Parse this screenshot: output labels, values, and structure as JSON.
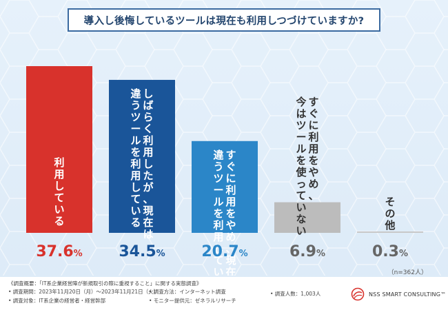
{
  "title": "導入し後悔しているツールは現在も利用しつづけていますか?",
  "sample_size": "（n=362人）",
  "chart_data": {
    "type": "bar",
    "title": "導入し後悔しているツールは現在も利用しつづけていますか?",
    "categories": [
      "利用している",
      "しばらく利用したが、現在は違うツールを利用している",
      "すぐに利用をやめ、現在は違うツールを利用している",
      "すぐに利用をやめ、今はツールを使っていない",
      "その他"
    ],
    "label_lines": [
      [
        "利用している"
      ],
      [
        "しばらく利用したが、現在は",
        "違うツールを利用している"
      ],
      [
        "すぐに利用をやめ、現在は",
        "違うツールを利用している"
      ],
      [
        "すぐに利用をやめ、",
        "今はツールを使っていない"
      ],
      [
        "その他"
      ]
    ],
    "values": [
      37.6,
      34.5,
      20.7,
      6.9,
      0.3
    ],
    "value_labels": [
      "37.6%",
      "34.5%",
      "20.7%",
      "6.9%",
      "0.3%"
    ],
    "unit": "%",
    "colors": [
      "#d8322c",
      "#1a5599",
      "#2b86c8",
      "#bcbcbc",
      "#c8c8c8"
    ],
    "value_colors": [
      "#d8322c",
      "#1a5599",
      "#2b86c8",
      "#666666",
      "#666666"
    ],
    "label_colors": [
      "#ffffff",
      "#ffffff",
      "#ffffff",
      "#333333",
      "#333333"
    ],
    "ylim": [
      0,
      37.6
    ],
    "xlabel": "",
    "ylabel": "",
    "grid": false
  },
  "footer": {
    "survey_overview": "《調査概要：「IT系企業経営陣が新規取引の際に重視すること」に関する実態調査》",
    "period": "• 調査期間：2023年11月20日（月）〜2023年11月21日（火）",
    "method": "• 調査方法：インターネット調査",
    "respondents": "• 調査人数：1,003人",
    "target": "• 調査対象：IT系企業の経営者・経営幹部",
    "provider": "• モニター提供元：ゼネラルリサーチ"
  },
  "logo": {
    "text": "NSS SMART CONSULTING™",
    "color": "#d8322c"
  },
  "background_color": "#e6f1fb"
}
